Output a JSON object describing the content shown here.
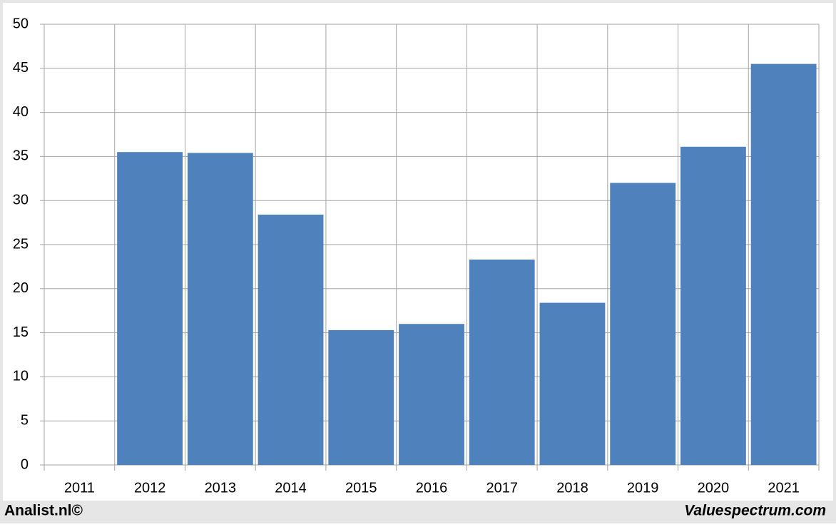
{
  "chart_data": {
    "type": "bar",
    "categories": [
      "2011",
      "2012",
      "2013",
      "2014",
      "2015",
      "2016",
      "2017",
      "2018",
      "2019",
      "2020",
      "2021"
    ],
    "values": [
      null,
      35.5,
      35.4,
      28.4,
      15.3,
      16.0,
      23.3,
      18.4,
      32.0,
      36.1,
      45.5
    ],
    "color": "#4f81bd",
    "ylim": [
      0,
      50
    ],
    "yticks": [
      0,
      5,
      10,
      15,
      20,
      25,
      30,
      35,
      40,
      45,
      50
    ],
    "grid": true
  },
  "footer": {
    "left": "Analist.nl©",
    "right": "Valuespectrum.com"
  }
}
